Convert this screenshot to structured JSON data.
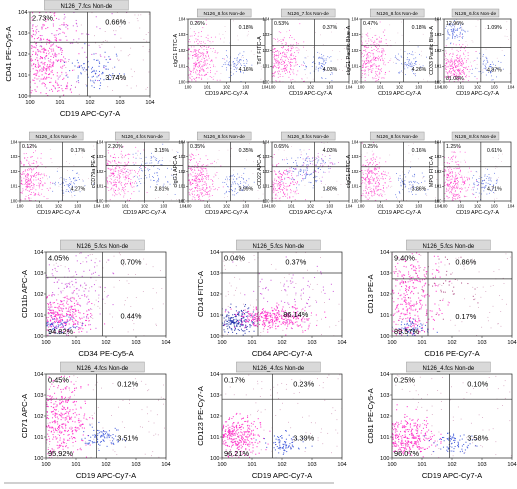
{
  "colors": {
    "dense": "#ff1fc4",
    "mid": "#c84bd8",
    "sparse": "#a8407a",
    "blue": "#2f4bd8",
    "blue_dense": "#1a2aa8",
    "caption_bg": "#d9d9d9"
  },
  "ticks": [
    "10^0",
    "10^1",
    "10^2",
    "10^3",
    "10^4"
  ],
  "chart_data": [
    {
      "type": "scatter",
      "caption": "N126_7.fcs Non-de",
      "xlabel": "CD19 APC-Cy7-A",
      "ylabel": "CD41 PE-Cy5-A",
      "quadrants": {
        "ul": "2.73%",
        "ur": "0.66%",
        "ll": "",
        "lr": "3.74%"
      }
    },
    {
      "type": "scatter",
      "caption": "N126_8.fcs Non-de",
      "xlabel": "CD19 APC-Cy7-A",
      "ylabel": "cIgG1 FITC-A",
      "quadrants": {
        "ul": "0.26%",
        "ur": "0.18%",
        "ll": "",
        "lr": "4.16%"
      }
    },
    {
      "type": "scatter",
      "caption": "N126_7.fcs Non-de",
      "xlabel": "CD19 APC-Cy7-A",
      "ylabel": "TdT FITC-A",
      "quadrants": {
        "ul": "0.53%",
        "ur": "0.37%",
        "ll": "",
        "lr": "4.03%"
      }
    },
    {
      "type": "scatter",
      "caption": "N126_8.fcs Non-de",
      "xlabel": "CD19 APC-Cy7-A",
      "ylabel": "cIgG1 Pacific Blue-A",
      "quadrants": {
        "ul": "0.47%",
        "ur": "0.18%",
        "ll": "",
        "lr": "4.26%"
      }
    },
    {
      "type": "scatter",
      "caption": "N126_6.fcs Non-de",
      "xlabel": "CD19 APC-Cy7-A",
      "ylabel": "CD33 Pacific Blue-A",
      "quadrants": {
        "ul": "12.96%",
        "ur": "1.09%",
        "ll": "81.08%",
        "lr": "4.87%"
      }
    },
    {
      "type": "scatter",
      "caption": "N126_4.fcs Non-de",
      "xlabel": "CD19 APC-Cy7-A",
      "ylabel": "",
      "quadrants": {
        "ul": "0.12%",
        "ur": "0.17%",
        "ll": "",
        "lr": "4.27%"
      }
    },
    {
      "type": "scatter",
      "caption": "N126_4.fcs Non-de",
      "xlabel": "CD19 APC-Cy7-A",
      "ylabel": "cCD79a PE-A",
      "quadrants": {
        "ul": "2.20%",
        "ur": "3.15%",
        "ll": "",
        "lr": "2.81%"
      }
    },
    {
      "type": "scatter",
      "caption": "N126_8.fcs Non-de",
      "xlabel": "CD19 APC-Cy7-A",
      "ylabel": "cIgG1 APC-A",
      "quadrants": {
        "ul": "0.35%",
        "ur": "0.35%",
        "ll": "",
        "lr": "3.99%"
      }
    },
    {
      "type": "scatter",
      "caption": "N126_8.fcs Non-de",
      "xlabel": "CD19 APC-Cy7-A",
      "ylabel": "cCD22 APC-A",
      "quadrants": {
        "ul": "0.65%",
        "ur": "4.03%",
        "ll": "",
        "lr": "1.80%"
      }
    },
    {
      "type": "scatter",
      "caption": "N126_8.fcs Non-de",
      "xlabel": "CD19 APC-Cy7-A",
      "ylabel": "cIgG1 FITC-A",
      "quadrants": {
        "ul": "0.25%",
        "ur": "0.16%",
        "ll": "",
        "lr": "3.86%"
      }
    },
    {
      "type": "scatter",
      "caption": "N126_8.fcs Non-de",
      "xlabel": "CD19 APC-Cy7-A",
      "ylabel": "MPO FITC-A",
      "quadrants": {
        "ul": "1.25%",
        "ur": "0.61%",
        "ll": "",
        "lr": "4.71%"
      }
    },
    {
      "type": "scatter",
      "caption": "N126_5.fcs Non-de",
      "xlabel": "CD34 PE-Cy5-A",
      "ylabel": "CD11b APC-A",
      "quadrants": {
        "ul": "4.05%",
        "ur": "0.70%",
        "ll": "94.82%",
        "lr": "0.44%"
      }
    },
    {
      "type": "scatter",
      "caption": "N126_5.fcs Non-de",
      "xlabel": "CD64 APC-Cy7-A",
      "ylabel": "CD14 FITC-A",
      "quadrants": {
        "ul": "0.04%",
        "ur": "0.37%",
        "ll": "",
        "lr": "86.14%"
      }
    },
    {
      "type": "scatter",
      "caption": "N126_5.fcs Non-de",
      "xlabel": "CD16 PE-Cy7-A",
      "ylabel": "CD13 PE-A",
      "quadrants": {
        "ul": "9.40%",
        "ur": "0.86%",
        "ll": "89.57%",
        "lr": "0.17%"
      }
    },
    {
      "type": "scatter",
      "caption": "N126_4.fcs Non-de",
      "xlabel": "CD19 APC-Cy7-A",
      "ylabel": "CD71 APC-A",
      "quadrants": {
        "ul": "0.45%",
        "ur": "0.12%",
        "ll": "95.92%",
        "lr": "3.51%"
      }
    },
    {
      "type": "scatter",
      "caption": "N126_4.fcs Non-de",
      "xlabel": "CD19 APC-Cy7-A",
      "ylabel": "CD123 PE-Cy7-A",
      "quadrants": {
        "ul": "0.17%",
        "ur": "0.23%",
        "ll": "96.21%",
        "lr": "3.39%"
      }
    },
    {
      "type": "scatter",
      "caption": "N126_4.fcs Non-de",
      "xlabel": "CD19 APC-Cy7-A",
      "ylabel": "CD81 PE-Cy5-A",
      "quadrants": {
        "ul": "0.25%",
        "ur": "0.10%",
        "ll": "96.07%",
        "lr": "3.58%"
      }
    }
  ]
}
